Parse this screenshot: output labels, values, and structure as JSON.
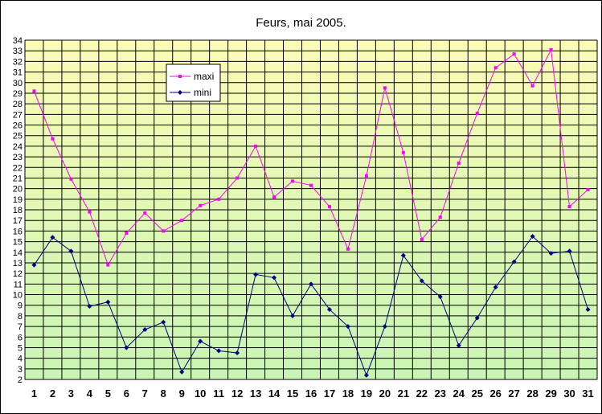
{
  "chart_data": {
    "type": "line",
    "title": "Feurs, mai 2005.",
    "xlabel": "",
    "ylabel": "",
    "categories": [
      "1",
      "2",
      "3",
      "4",
      "5",
      "6",
      "7",
      "8",
      "9",
      "10",
      "11",
      "12",
      "13",
      "14",
      "15",
      "16",
      "17",
      "18",
      "19",
      "20",
      "21",
      "22",
      "23",
      "24",
      "25",
      "26",
      "27",
      "28",
      "29",
      "30",
      "31"
    ],
    "yticks": [
      "2",
      "3",
      "4",
      "5",
      "6",
      "7",
      "8",
      "9",
      "10",
      "11",
      "12",
      "13",
      "14",
      "15",
      "16",
      "17",
      "18",
      "19",
      "20",
      "21",
      "22",
      "23",
      "24",
      "25",
      "26",
      "27",
      "28",
      "29",
      "30",
      "31",
      "32",
      "33",
      "34"
    ],
    "ylim": [
      2,
      34
    ],
    "grid": true,
    "legend_position": "top-left",
    "series": [
      {
        "name": "maxi",
        "color": "#ff00ff",
        "marker": "square",
        "values": [
          29.2,
          24.7,
          20.9,
          17.8,
          12.8,
          15.8,
          17.7,
          16.0,
          17.0,
          18.4,
          19.0,
          21.0,
          24.0,
          19.2,
          20.7,
          20.3,
          18.3,
          14.3,
          21.2,
          29.5,
          23.4,
          15.2,
          17.3,
          22.4,
          27.1,
          31.4,
          32.7,
          29.7,
          33.1,
          18.3,
          19.9
        ]
      },
      {
        "name": "mini",
        "color": "#000080",
        "marker": "diamond",
        "values": [
          12.8,
          15.4,
          14.1,
          8.9,
          9.3,
          5.0,
          6.7,
          7.4,
          2.7,
          5.6,
          4.7,
          4.5,
          11.9,
          11.6,
          8.0,
          11.0,
          8.6,
          7.0,
          2.4,
          7.0,
          13.7,
          11.3,
          9.8,
          5.2,
          7.8,
          10.7,
          13.1,
          15.5,
          13.9,
          14.1,
          8.6
        ]
      }
    ]
  }
}
